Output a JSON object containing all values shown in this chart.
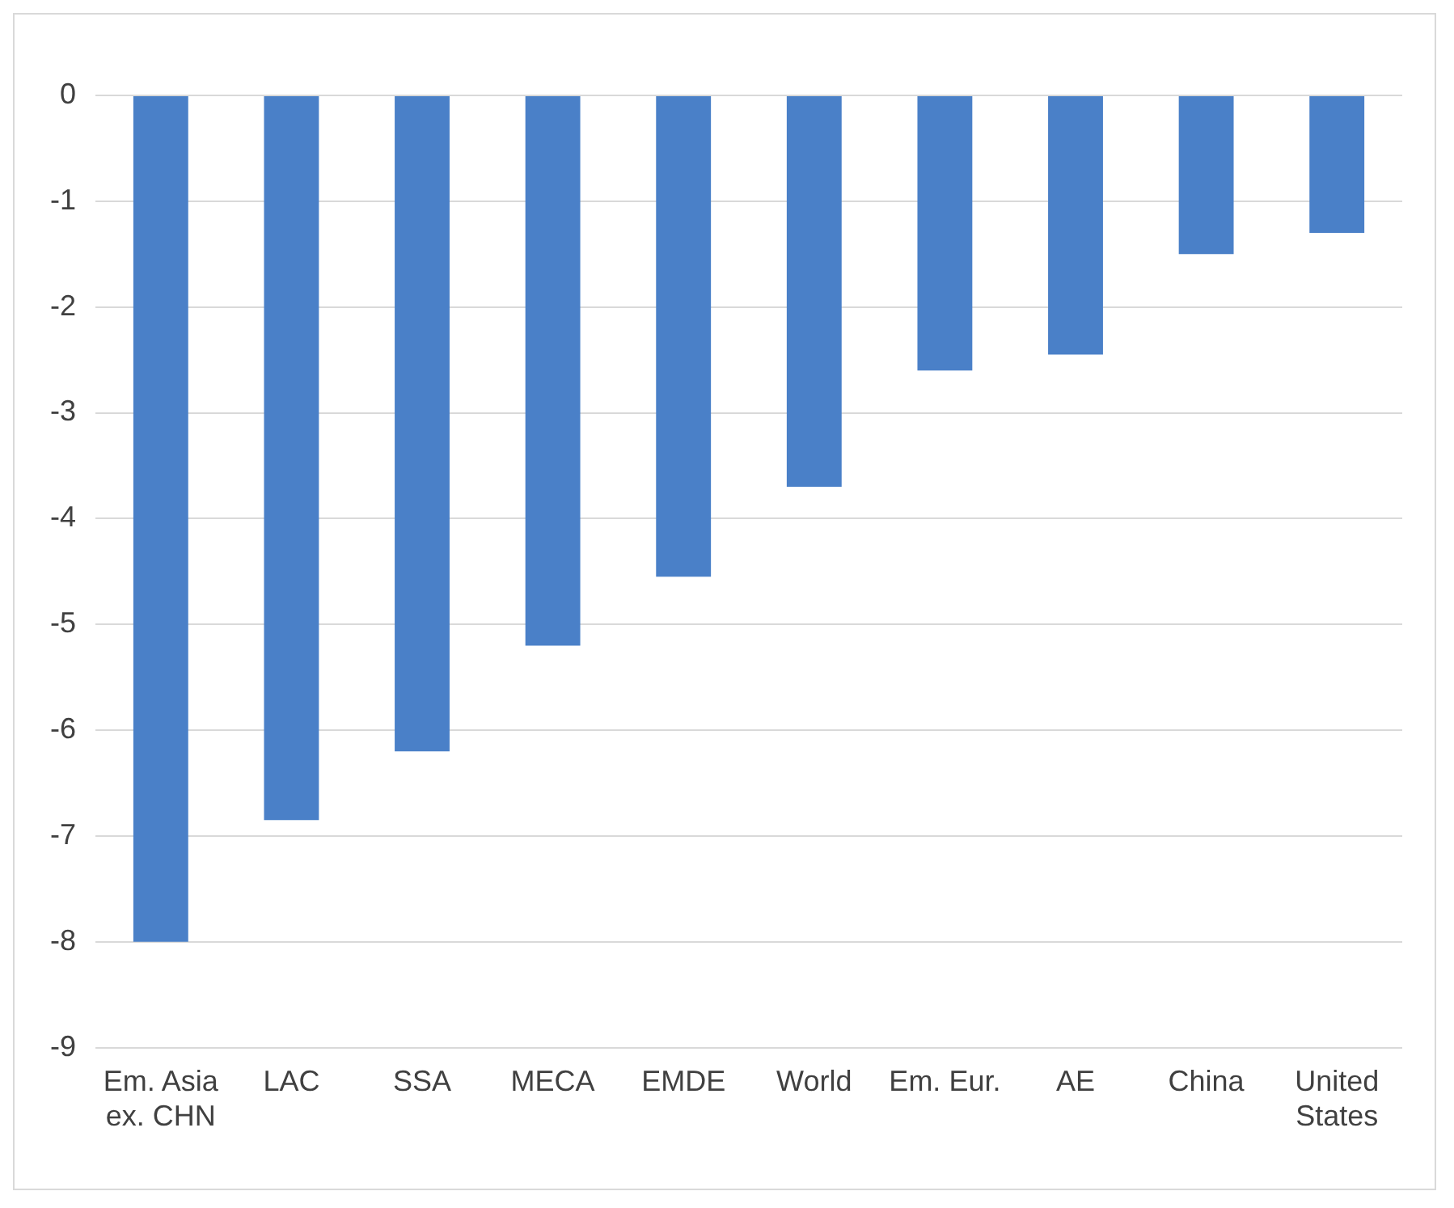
{
  "chart_data": {
    "type": "bar",
    "categories": [
      "Em. Asia ex. CHN",
      "LAC",
      "SSA",
      "MECA",
      "EMDE",
      "World",
      "Em. Eur.",
      "AE",
      "China",
      "United States"
    ],
    "values": [
      -8.0,
      -6.85,
      -6.2,
      -5.2,
      -4.55,
      -3.7,
      -2.6,
      -2.45,
      -1.5,
      -1.3
    ],
    "color": "#4a80c8",
    "ylim": [
      -9,
      0
    ],
    "yticks": [
      -9,
      -8,
      -7,
      -6,
      -5,
      -4,
      -3,
      -2,
      -1,
      0
    ],
    "grid": "y",
    "legend": false
  }
}
